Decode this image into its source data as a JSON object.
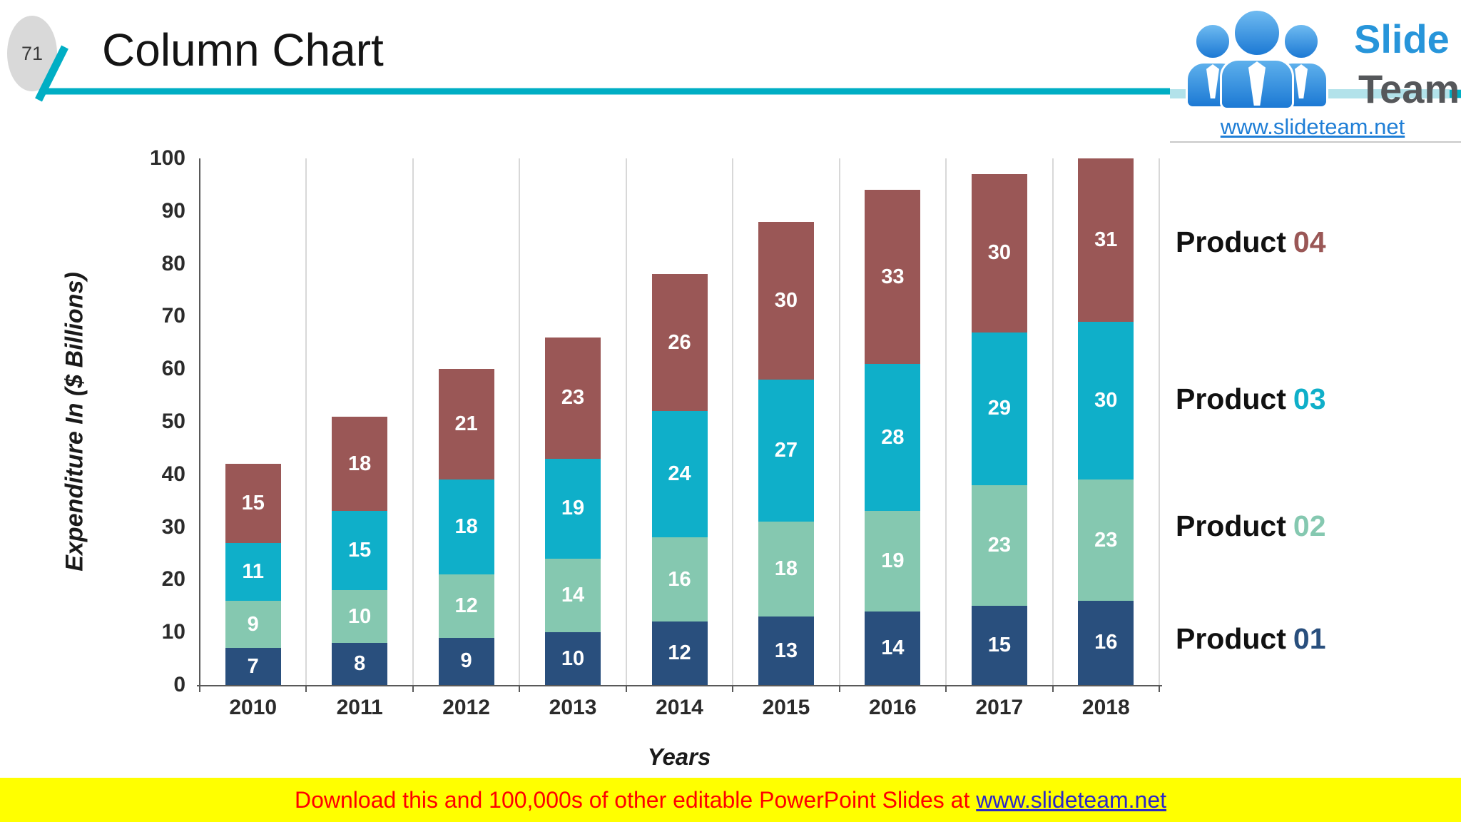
{
  "slide": {
    "number": "71",
    "title": "Column Chart"
  },
  "logo": {
    "brand_top": "Slide",
    "brand_bottom": "Team",
    "url": "www.slideteam.net",
    "people_icon_color": "#1c79d4",
    "accent_color": "#00aec4"
  },
  "banner": {
    "text": "Download this and 100,000s of other editable PowerPoint Slides at ",
    "link": "www.slideteam.net"
  },
  "chart_data": {
    "type": "bar",
    "stacked": true,
    "categories": [
      "2010",
      "2011",
      "2012",
      "2013",
      "2014",
      "2015",
      "2016",
      "2017",
      "2018"
    ],
    "series": [
      {
        "name": "Product 01",
        "color": "#294F7D",
        "values": [
          7,
          8,
          9,
          10,
          12,
          13,
          14,
          15,
          16
        ]
      },
      {
        "name": "Product 02",
        "color": "#85C8B0",
        "values": [
          9,
          10,
          12,
          14,
          16,
          18,
          19,
          23,
          23
        ]
      },
      {
        "name": "Product 03",
        "color": "#0FAFC9",
        "values": [
          11,
          15,
          18,
          19,
          24,
          27,
          28,
          29,
          30
        ]
      },
      {
        "name": "Product 04",
        "color": "#9A5756",
        "values": [
          15,
          18,
          21,
          23,
          26,
          30,
          33,
          30,
          31
        ]
      }
    ],
    "totals": [
      42,
      51,
      60,
      66,
      78,
      88,
      94,
      97,
      100
    ],
    "title": "",
    "xlabel": "Years",
    "ylabel": "Expenditure In ($ Billions)",
    "ylim": [
      0,
      100
    ],
    "yticks": [
      0,
      10,
      20,
      30,
      40,
      50,
      60,
      70,
      80,
      90,
      100
    ],
    "grid": "vertical-category-boundaries-only",
    "legend_position": "right",
    "legend": [
      {
        "word": "Product",
        "number": "04",
        "color": "#9A5756"
      },
      {
        "word": "Product",
        "number": "03",
        "color": "#0FAFC9"
      },
      {
        "word": "Product",
        "number": "02",
        "color": "#85C8B0"
      },
      {
        "word": "Product",
        "number": "01",
        "color": "#294F7D"
      }
    ]
  }
}
